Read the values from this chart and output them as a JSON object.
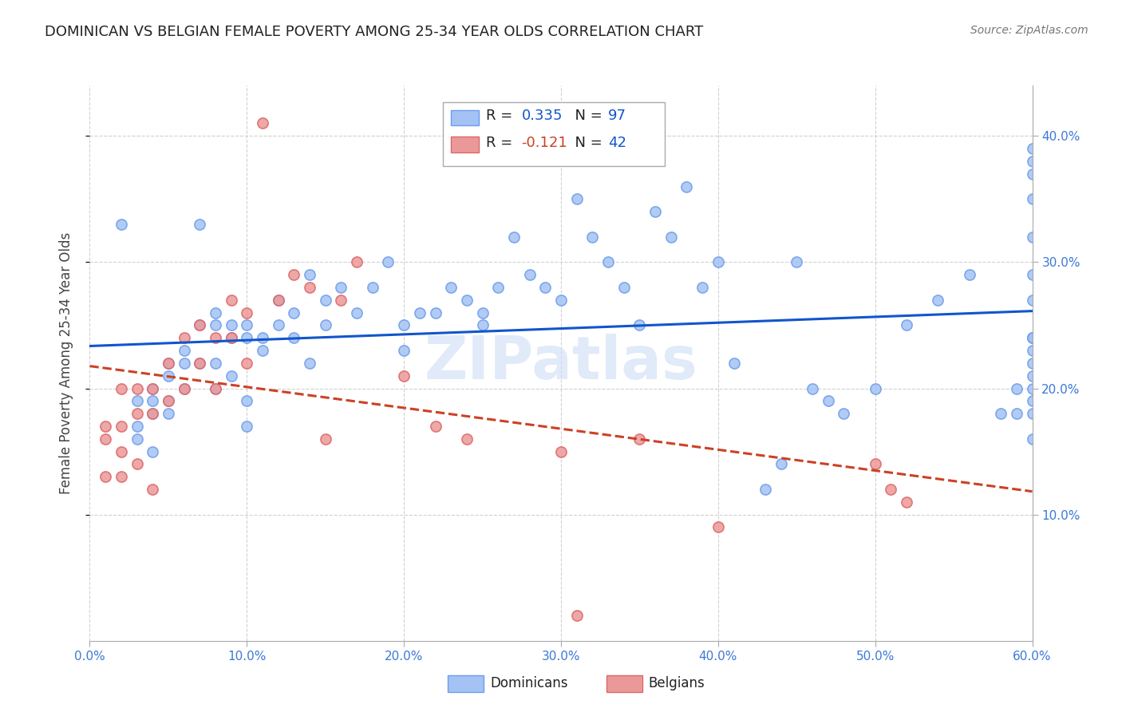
{
  "title": "DOMINICAN VS BELGIAN FEMALE POVERTY AMONG 25-34 YEAR OLDS CORRELATION CHART",
  "source": "Source: ZipAtlas.com",
  "ylabel": "Female Poverty Among 25-34 Year Olds",
  "xlim": [
    0.0,
    0.6
  ],
  "ylim": [
    0.0,
    0.44
  ],
  "dominican_color": "#a4c2f4",
  "dominican_edge": "#6d9eeb",
  "belgian_color": "#ea9999",
  "belgian_edge": "#e06666",
  "trend_dominican_color": "#1155cc",
  "trend_belgian_color": "#cc4125",
  "R_dominican": 0.335,
  "N_dominican": 97,
  "R_belgian": -0.121,
  "N_belgian": 42,
  "watermark": "ZIPatlas",
  "dominican_x": [
    0.02,
    0.03,
    0.03,
    0.03,
    0.04,
    0.04,
    0.04,
    0.04,
    0.05,
    0.05,
    0.05,
    0.05,
    0.06,
    0.06,
    0.06,
    0.07,
    0.07,
    0.07,
    0.08,
    0.08,
    0.08,
    0.08,
    0.09,
    0.09,
    0.09,
    0.1,
    0.1,
    0.1,
    0.1,
    0.11,
    0.11,
    0.12,
    0.12,
    0.13,
    0.13,
    0.14,
    0.14,
    0.15,
    0.15,
    0.16,
    0.17,
    0.18,
    0.19,
    0.2,
    0.2,
    0.21,
    0.22,
    0.23,
    0.24,
    0.25,
    0.25,
    0.26,
    0.27,
    0.28,
    0.29,
    0.3,
    0.31,
    0.32,
    0.33,
    0.34,
    0.35,
    0.36,
    0.37,
    0.38,
    0.39,
    0.4,
    0.41,
    0.43,
    0.44,
    0.45,
    0.46,
    0.47,
    0.48,
    0.5,
    0.52,
    0.54,
    0.56,
    0.58,
    0.59,
    0.59,
    0.6,
    0.6,
    0.6,
    0.6,
    0.6,
    0.6,
    0.6,
    0.6,
    0.6,
    0.6,
    0.6,
    0.6,
    0.6,
    0.6,
    0.6,
    0.6,
    0.6
  ],
  "dominican_y": [
    0.33,
    0.19,
    0.17,
    0.16,
    0.2,
    0.19,
    0.18,
    0.15,
    0.22,
    0.21,
    0.19,
    0.18,
    0.23,
    0.22,
    0.2,
    0.33,
    0.25,
    0.22,
    0.26,
    0.25,
    0.22,
    0.2,
    0.25,
    0.24,
    0.21,
    0.25,
    0.24,
    0.19,
    0.17,
    0.24,
    0.23,
    0.27,
    0.25,
    0.26,
    0.24,
    0.29,
    0.22,
    0.27,
    0.25,
    0.28,
    0.26,
    0.28,
    0.3,
    0.25,
    0.23,
    0.26,
    0.26,
    0.28,
    0.27,
    0.26,
    0.25,
    0.28,
    0.32,
    0.29,
    0.28,
    0.27,
    0.35,
    0.32,
    0.3,
    0.28,
    0.25,
    0.34,
    0.32,
    0.36,
    0.28,
    0.3,
    0.22,
    0.12,
    0.14,
    0.3,
    0.2,
    0.19,
    0.18,
    0.2,
    0.25,
    0.27,
    0.29,
    0.18,
    0.18,
    0.2,
    0.24,
    0.21,
    0.23,
    0.16,
    0.24,
    0.22,
    0.19,
    0.18,
    0.32,
    0.35,
    0.38,
    0.37,
    0.39,
    0.29,
    0.27,
    0.24,
    0.2
  ],
  "belgian_x": [
    0.01,
    0.01,
    0.01,
    0.02,
    0.02,
    0.02,
    0.02,
    0.03,
    0.03,
    0.03,
    0.04,
    0.04,
    0.04,
    0.05,
    0.05,
    0.06,
    0.06,
    0.07,
    0.07,
    0.08,
    0.08,
    0.09,
    0.09,
    0.1,
    0.1,
    0.11,
    0.12,
    0.13,
    0.14,
    0.15,
    0.16,
    0.17,
    0.2,
    0.22,
    0.24,
    0.3,
    0.31,
    0.35,
    0.4,
    0.5,
    0.51,
    0.52
  ],
  "belgian_y": [
    0.17,
    0.16,
    0.13,
    0.2,
    0.17,
    0.15,
    0.13,
    0.2,
    0.18,
    0.14,
    0.2,
    0.18,
    0.12,
    0.22,
    0.19,
    0.24,
    0.2,
    0.25,
    0.22,
    0.24,
    0.2,
    0.27,
    0.24,
    0.26,
    0.22,
    0.41,
    0.27,
    0.29,
    0.28,
    0.16,
    0.27,
    0.3,
    0.21,
    0.17,
    0.16,
    0.15,
    0.02,
    0.16,
    0.09,
    0.14,
    0.12,
    0.11
  ]
}
